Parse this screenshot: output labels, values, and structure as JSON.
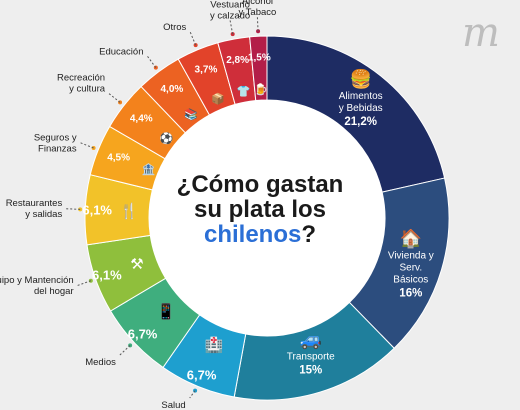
{
  "center": {
    "line1": "¿Cómo gastan",
    "line2": "su plata los",
    "line3_highlight": "chilenos",
    "line3_end": "?"
  },
  "logo_text": "m",
  "chart_data": {
    "type": "pie",
    "title": "¿Cómo gastan su plata los chilenos?",
    "slices": [
      {
        "label": "Alimentos y Bebidas",
        "value": 21.2,
        "display": "21,2%",
        "color": "#1e2c63",
        "icon": "burger-icon",
        "glyph": "🍔"
      },
      {
        "label": "Vivienda y Serv. Básicos",
        "value": 16.0,
        "display": "16%",
        "color": "#2c4d7e",
        "icon": "house-icon",
        "glyph": "🏠"
      },
      {
        "label": "Transporte",
        "value": 15.0,
        "display": "15%",
        "color": "#1f7f9c",
        "icon": "car-icon",
        "glyph": "🚙"
      },
      {
        "label": "Salud",
        "value": 6.7,
        "display": "6,7%",
        "color": "#1e9fcf",
        "icon": "hospital-icon",
        "glyph": "🏥"
      },
      {
        "label": "Medios",
        "value": 6.7,
        "display": "6,7%",
        "color": "#3fae7e",
        "icon": "mobile-phone-icon",
        "glyph": "📱"
      },
      {
        "label": "Equipo y Mantención del hogar",
        "value": 6.1,
        "display": "6,1%",
        "color": "#8fbf3c",
        "icon": "tools-icon",
        "glyph": "⚒"
      },
      {
        "label": "Restaurantes y salidas",
        "value": 6.1,
        "display": "6,1%",
        "color": "#f2c229",
        "icon": "fork-knife-icon",
        "glyph": "🍴"
      },
      {
        "label": "Seguros y Finanzas",
        "value": 4.5,
        "display": "4,5%",
        "color": "#f6a51e",
        "icon": "bank-icon",
        "glyph": "🏦"
      },
      {
        "label": "Recreación y cultura",
        "value": 4.4,
        "display": "4,4%",
        "color": "#f3821c",
        "icon": "soccer-ball-icon",
        "glyph": "⚽"
      },
      {
        "label": "Educación",
        "value": 4.0,
        "display": "4,0%",
        "color": "#ec6222",
        "icon": "books-icon",
        "glyph": "📚"
      },
      {
        "label": "Otros",
        "value": 3.7,
        "display": "3,7%",
        "color": "#e2432a",
        "icon": "package-icon",
        "glyph": "📦"
      },
      {
        "label": "Vestuario y calzado",
        "value": 2.8,
        "display": "2,8%",
        "color": "#cf2e3a",
        "icon": "tshirt-icon",
        "glyph": "👕"
      },
      {
        "label": "Alcohol y Tabaco",
        "value": 1.5,
        "display": "1,5%",
        "color": "#b31e48",
        "icon": "beer-icon",
        "glyph": "🍺"
      }
    ]
  }
}
